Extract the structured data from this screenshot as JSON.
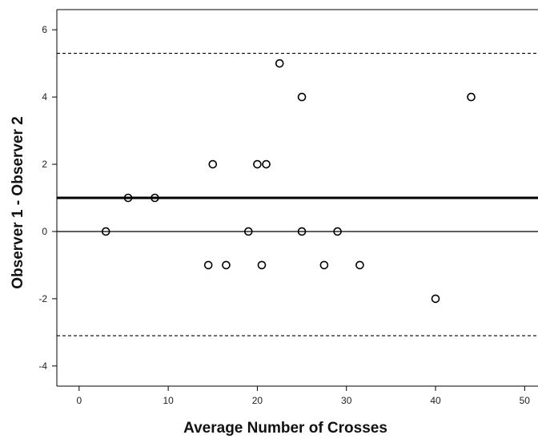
{
  "chart_data": {
    "type": "scatter",
    "title": "",
    "xlabel": "Average Number of Crosses",
    "ylabel": "Observer 1 - Observer 2",
    "xlim": [
      -2.5,
      51.5
    ],
    "ylim": [
      -4.6,
      6.6
    ],
    "x_ticks": [
      0,
      10,
      20,
      30,
      40,
      50
    ],
    "y_ticks": [
      -4,
      -2,
      0,
      2,
      4,
      6
    ],
    "grid": false,
    "legend": "none",
    "points": [
      {
        "x": 3,
        "y": 0
      },
      {
        "x": 5.5,
        "y": 1
      },
      {
        "x": 8.5,
        "y": 1
      },
      {
        "x": 14.5,
        "y": -1
      },
      {
        "x": 15,
        "y": 2
      },
      {
        "x": 16.5,
        "y": -1
      },
      {
        "x": 19,
        "y": 0
      },
      {
        "x": 20,
        "y": 2
      },
      {
        "x": 20.5,
        "y": -1
      },
      {
        "x": 21,
        "y": 2
      },
      {
        "x": 22.5,
        "y": 5
      },
      {
        "x": 25,
        "y": 4
      },
      {
        "x": 25,
        "y": 0
      },
      {
        "x": 27.5,
        "y": -1
      },
      {
        "x": 29,
        "y": 0
      },
      {
        "x": 31.5,
        "y": -1
      },
      {
        "x": 40,
        "y": -2
      },
      {
        "x": 44,
        "y": 4
      }
    ],
    "reference_lines": [
      {
        "y": 0,
        "style": "thin-solid"
      },
      {
        "y": 1.0,
        "style": "thick-solid"
      },
      {
        "y": 5.3,
        "style": "dashed"
      },
      {
        "y": -3.1,
        "style": "dashed"
      }
    ],
    "colors": {
      "marker": "#000000",
      "axis": "#000000",
      "background": "#ffffff"
    }
  }
}
